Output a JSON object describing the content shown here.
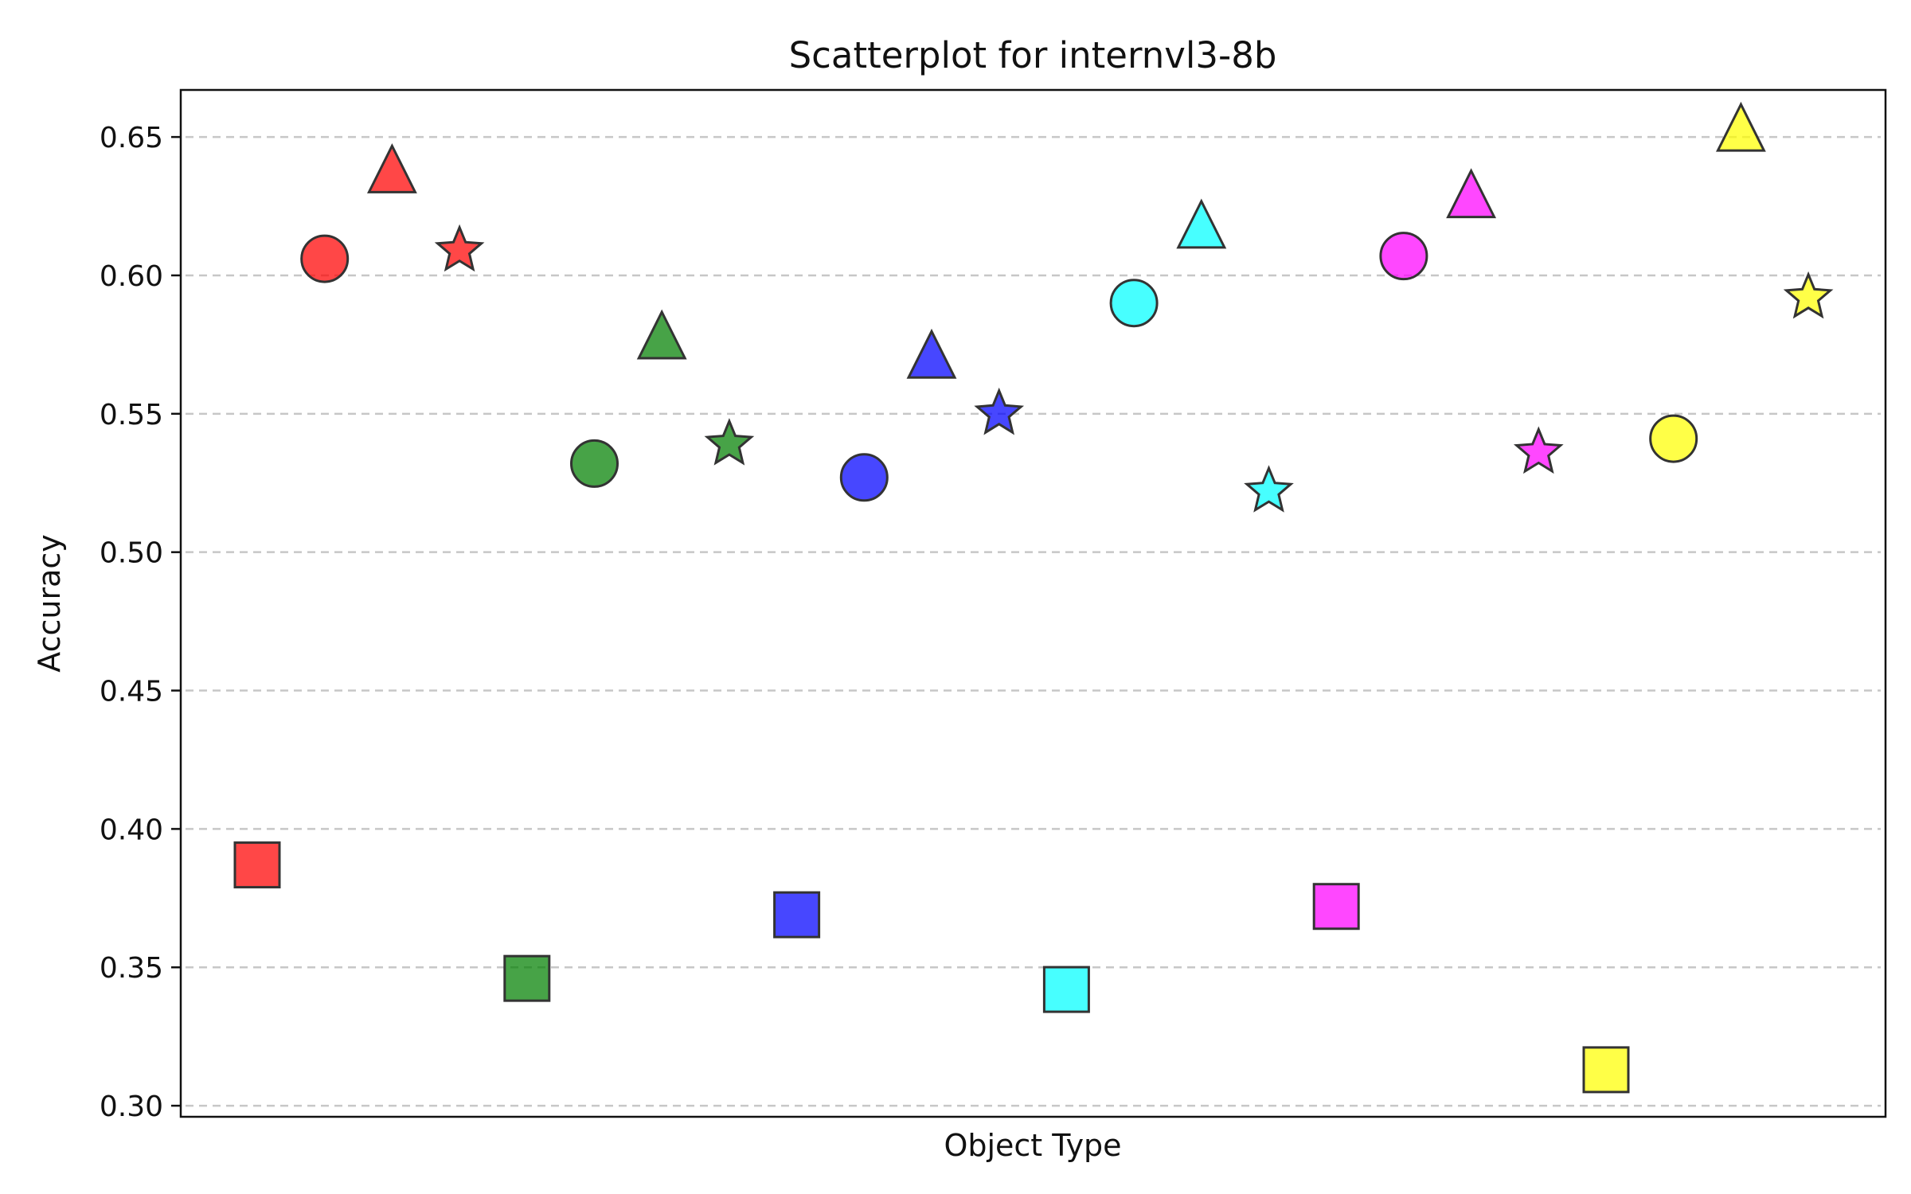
{
  "chart_data": {
    "type": "scatter",
    "title": "Scatterplot for internvl3-8b",
    "xlabel": "Object Type",
    "ylabel": "Accuracy",
    "ylim": [
      0.296,
      0.667
    ],
    "yticks": [
      "0.30",
      "0.35",
      "0.40",
      "0.45",
      "0.50",
      "0.55",
      "0.60",
      "0.65"
    ],
    "grid": "y-dashed",
    "groups": [
      {
        "color": "#ff0000",
        "points": [
          {
            "marker": "square",
            "y": 0.387
          },
          {
            "marker": "circle",
            "y": 0.606
          },
          {
            "marker": "triangle",
            "y": 0.637
          },
          {
            "marker": "star",
            "y": 0.609
          }
        ]
      },
      {
        "color": "#008000",
        "points": [
          {
            "marker": "square",
            "y": 0.346
          },
          {
            "marker": "circle",
            "y": 0.532
          },
          {
            "marker": "triangle",
            "y": 0.577
          },
          {
            "marker": "star",
            "y": 0.539
          }
        ]
      },
      {
        "color": "#0000ff",
        "points": [
          {
            "marker": "square",
            "y": 0.369
          },
          {
            "marker": "circle",
            "y": 0.527
          },
          {
            "marker": "triangle",
            "y": 0.57
          },
          {
            "marker": "star",
            "y": 0.55
          }
        ]
      },
      {
        "color": "#00ffff",
        "points": [
          {
            "marker": "square",
            "y": 0.342
          },
          {
            "marker": "circle",
            "y": 0.59
          },
          {
            "marker": "triangle",
            "y": 0.617
          },
          {
            "marker": "star",
            "y": 0.522
          }
        ]
      },
      {
        "color": "#ff00ff",
        "points": [
          {
            "marker": "square",
            "y": 0.372
          },
          {
            "marker": "circle",
            "y": 0.607
          },
          {
            "marker": "triangle",
            "y": 0.628
          },
          {
            "marker": "star",
            "y": 0.536
          }
        ]
      },
      {
        "color": "#ffff00",
        "points": [
          {
            "marker": "square",
            "y": 0.313
          },
          {
            "marker": "circle",
            "y": 0.541
          },
          {
            "marker": "triangle",
            "y": 0.652
          },
          {
            "marker": "star",
            "y": 0.592
          }
        ]
      }
    ]
  }
}
